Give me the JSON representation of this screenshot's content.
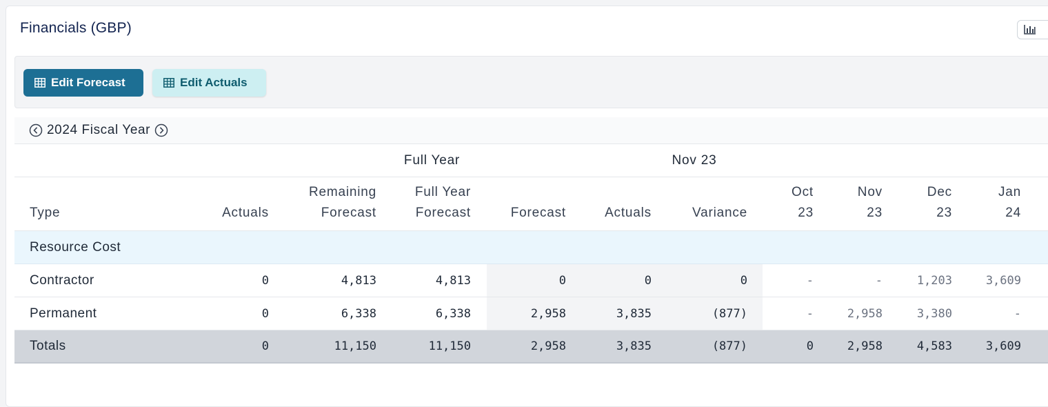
{
  "card": {
    "title": "Financials (GBP)",
    "chart_icon": "bar-chart-icon"
  },
  "toolbar": {
    "edit_forecast_label": "Edit Forecast",
    "edit_actuals_label": "Edit Actuals",
    "button_icon": "table-grid-icon"
  },
  "year_nav": {
    "label": "2024 Fiscal Year",
    "prev_icon": "chevron-left-circle-icon",
    "next_icon": "chevron-right-circle-icon"
  },
  "table": {
    "groups": {
      "full_year": "Full Year",
      "period": "Nov 23"
    },
    "columns": {
      "type": "Type",
      "actuals": "Actuals",
      "remaining_forecast": "Remaining\nForecast",
      "full_year_forecast": "Full Year\nForecast",
      "forecast": "Forecast",
      "period_actuals": "Actuals",
      "variance": "Variance",
      "m1": "Oct\n23",
      "m2": "Nov\n23",
      "m3": "Dec\n23",
      "m4": "Jan\n24"
    },
    "section": "Resource Cost",
    "rows": [
      {
        "type": "Contractor",
        "actuals": "0",
        "remaining_forecast": "4,813",
        "full_year_forecast": "4,813",
        "forecast": "0",
        "period_actuals": "0",
        "variance": "0",
        "m1": "-",
        "m2": "-",
        "m3": "1,203",
        "m4": "3,609"
      },
      {
        "type": "Permanent",
        "actuals": "0",
        "remaining_forecast": "6,338",
        "full_year_forecast": "6,338",
        "forecast": "2,958",
        "period_actuals": "3,835",
        "variance": "(877)",
        "m1": "-",
        "m2": "2,958",
        "m3": "3,380",
        "m4": "-"
      }
    ],
    "totals": {
      "type": "Totals",
      "actuals": "0",
      "remaining_forecast": "11,150",
      "full_year_forecast": "11,150",
      "forecast": "2,958",
      "period_actuals": "3,835",
      "variance": "(877)",
      "m1": "0",
      "m2": "2,958",
      "m3": "4,583",
      "m4": "3,609"
    }
  },
  "colors": {
    "primary": "#1d6f94",
    "secondary_bg": "#cdeff2",
    "title": "#12234f",
    "section_bg": "#eaf6fd",
    "totals_bg": "#d1d5db"
  }
}
